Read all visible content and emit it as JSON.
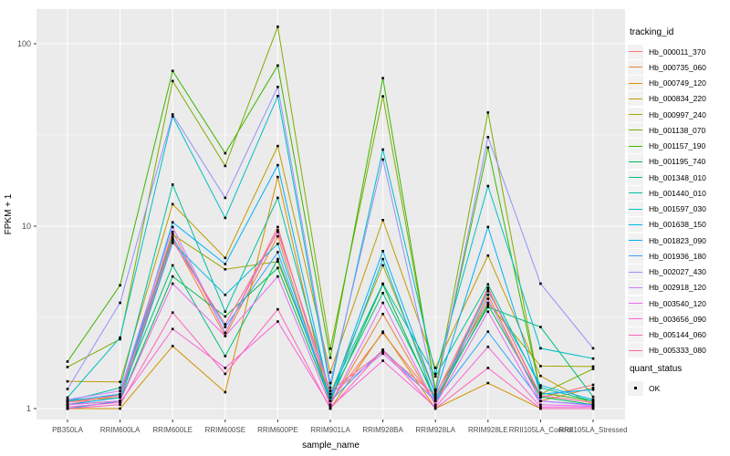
{
  "figure": {
    "background": "#FFFFFF",
    "panel_background": "#EBEBEB",
    "gridline_color": "#FFFFFF",
    "tick_text_color": "#4D4D4D",
    "x_axis_title": "sample_name",
    "y_axis_title": "FPKM + 1",
    "legend": {
      "title": "tracking_id",
      "quant_title": "quant_status",
      "quant_items": [
        {
          "label": "OK",
          "marker": "black-square"
        }
      ]
    }
  },
  "chart_data": {
    "type": "line",
    "title": "",
    "xlabel": "sample_name",
    "ylabel": "FPKM + 1",
    "y_scale": "log10",
    "y_ticks": [
      1,
      10,
      100
    ],
    "y_tick_labels": [
      "1",
      "10",
      "100"
    ],
    "y_minor_ticks": [
      3.162,
      31.62
    ],
    "ylim_displayed": [
      1,
      140
    ],
    "grid": "white major and minor on gray panel",
    "legend_position": "right",
    "point_marker": "small black square (quant_status OK)",
    "categories": [
      "PB350LA",
      "RRIM600LA",
      "RRIM600LE",
      "RRIM600SE",
      "RRIM600PE",
      "RRIM901LA",
      "RRIM928BA",
      "RRIM928LA",
      "RRIM928LE",
      "RRII105LA_Control",
      "RRII105LA_Stressed"
    ],
    "series": [
      {
        "name": "Hb_000011_370",
        "color": "#F8766D",
        "values": [
          1.05,
          1.2,
          9.3,
          2.6,
          9.9,
          1.1,
          2.6,
          1.1,
          4.6,
          1.15,
          1.35
        ]
      },
      {
        "name": "Hb_000735_060",
        "color": "#EA8331",
        "values": [
          1.0,
          1.1,
          8.5,
          2.5,
          8.8,
          1.05,
          3.3,
          1.05,
          4.2,
          1.1,
          1.3
        ]
      },
      {
        "name": "Hb_000749_120",
        "color": "#D89000",
        "values": [
          1.0,
          1.0,
          2.2,
          1.23,
          18.6,
          1.0,
          2.64,
          1.0,
          1.38,
          1.0,
          1.0
        ]
      },
      {
        "name": "Hb_000834_220",
        "color": "#C09B00",
        "values": [
          1.41,
          1.4,
          13.2,
          6.7,
          27.5,
          1.58,
          10.8,
          1.67,
          6.9,
          1.51,
          1.05
        ]
      },
      {
        "name": "Hb_000997_240",
        "color": "#A3A500",
        "values": [
          1.1,
          1.15,
          9.0,
          5.8,
          6.4,
          1.2,
          6.1,
          1.2,
          3.8,
          1.71,
          1.7
        ]
      },
      {
        "name": "Hb_001138_070",
        "color": "#7CAE00",
        "values": [
          1.69,
          2.4,
          62.5,
          21.4,
          124,
          2.13,
          51.5,
          1.27,
          42,
          1.2,
          1.65
        ]
      },
      {
        "name": "Hb_001157_190",
        "color": "#39B600",
        "values": [
          1.81,
          4.74,
          71,
          25.1,
          76,
          1.9,
          64.8,
          1.25,
          27,
          1.22,
          1.1
        ]
      },
      {
        "name": "Hb_001195_740",
        "color": "#00BB4E",
        "values": [
          1.05,
          1.1,
          5.3,
          3.2,
          5.9,
          1.1,
          4.8,
          1.1,
          3.7,
          1.16,
          1.05
        ]
      },
      {
        "name": "Hb_001348_010",
        "color": "#00BF7D",
        "values": [
          1.1,
          1.2,
          6.1,
          1.94,
          6.6,
          1.15,
          4.3,
          1.15,
          3.6,
          2.8,
          1.16
        ]
      },
      {
        "name": "Hb_001440_010",
        "color": "#00C1A3",
        "values": [
          1.1,
          1.3,
          16.9,
          3.4,
          14.3,
          1.2,
          4.84,
          1.5,
          4.8,
          1.3,
          1.1
        ]
      },
      {
        "name": "Hb_001597_030",
        "color": "#00BFC4",
        "values": [
          1.15,
          2.45,
          40,
          11.1,
          51.7,
          1.3,
          26.3,
          1.55,
          16.6,
          2.14,
          1.88
        ]
      },
      {
        "name": "Hb_001638_150",
        "color": "#00BAE0",
        "values": [
          1.0,
          1.1,
          8.1,
          4.2,
          8.0,
          1.1,
          6.6,
          1.1,
          4.4,
          1.34,
          1.12
        ]
      },
      {
        "name": "Hb_001823_090",
        "color": "#00B0F6",
        "values": [
          1.05,
          1.15,
          10.5,
          6.2,
          21.6,
          1.15,
          7.3,
          1.2,
          9.9,
          1.2,
          1.27
        ]
      },
      {
        "name": "Hb_001936_180",
        "color": "#35A2FF",
        "values": [
          1.1,
          1.2,
          8.7,
          2.8,
          7.2,
          1.1,
          2.1,
          1.1,
          2.64,
          1.1,
          1.05
        ]
      },
      {
        "name": "Hb_002027_430",
        "color": "#9590FF",
        "values": [
          1.28,
          3.8,
          41,
          14.3,
          58,
          1.38,
          23.2,
          1.22,
          30.8,
          4.84,
          2.14
        ]
      },
      {
        "name": "Hb_002918_120",
        "color": "#C77CFF",
        "values": [
          1.12,
          1.25,
          9.9,
          2.6,
          9.5,
          1.2,
          2.0,
          1.12,
          4.0,
          1.1,
          1.04
        ]
      },
      {
        "name": "Hb_003540_120",
        "color": "#E76BF3",
        "values": [
          1.05,
          1.1,
          4.84,
          2.5,
          5.3,
          1.05,
          3.8,
          1.05,
          3.4,
          1.05,
          1.03
        ]
      },
      {
        "name": "Hb_003656_090",
        "color": "#FA62DB",
        "values": [
          1.02,
          1.08,
          2.73,
          1.67,
          3.0,
          1.02,
          1.83,
          1.02,
          2.18,
          1.02,
          1.02
        ]
      },
      {
        "name": "Hb_005144_060",
        "color": "#FF62BC",
        "values": [
          1.0,
          1.05,
          3.36,
          1.55,
          3.5,
          1.0,
          2.1,
          1.0,
          1.67,
          1.0,
          1.0
        ]
      },
      {
        "name": "Hb_005333_080",
        "color": "#FF6A98",
        "values": [
          1.08,
          1.18,
          8.3,
          2.9,
          9.3,
          1.25,
          2.05,
          1.18,
          4.5,
          1.18,
          1.08
        ]
      }
    ]
  }
}
